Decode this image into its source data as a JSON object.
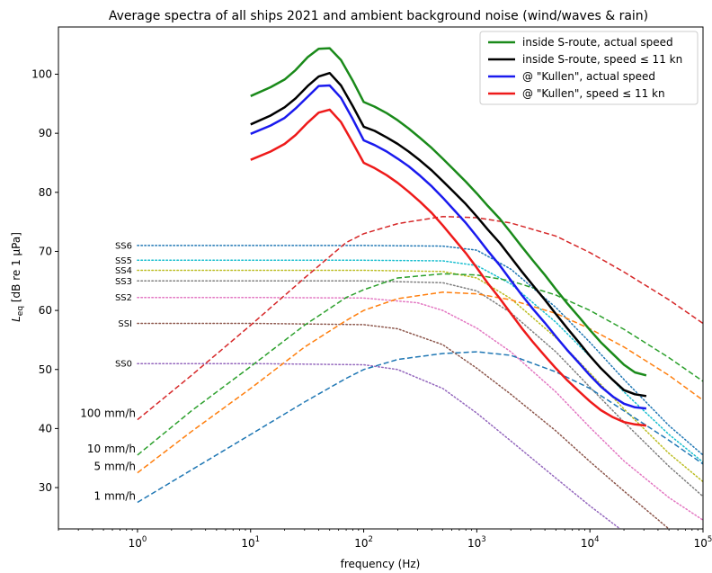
{
  "chart_data": {
    "type": "line",
    "title": "Average spectra of all ships 2021 and ambient background noise (wind/waves & rain)",
    "xlabel": "frequency (Hz)",
    "ylabel_main": "L",
    "ylabel_sub": "eq",
    "ylabel_rest": " [dB re 1 μPa]",
    "xscale": "log",
    "xlim": [
      0.2,
      100000
    ],
    "ylim": [
      23,
      108
    ],
    "x_ticks": [
      {
        "value": 1,
        "base": "10",
        "exp": "0"
      },
      {
        "value": 10,
        "base": "10",
        "exp": "1"
      },
      {
        "value": 100,
        "base": "10",
        "exp": "2"
      },
      {
        "value": 1000,
        "base": "10",
        "exp": "3"
      },
      {
        "value": 10000,
        "base": "10",
        "exp": "4"
      },
      {
        "value": 100000,
        "base": "10",
        "exp": "5"
      }
    ],
    "y_ticks": [
      30,
      40,
      50,
      60,
      70,
      80,
      90,
      100
    ],
    "grid": false,
    "legend_position": "top-right",
    "ship_series": [
      {
        "name": "inside S-route, actual speed",
        "color": "#1a8a1a",
        "x": [
          10,
          15,
          20,
          25,
          32,
          40,
          50,
          63,
          80,
          100,
          125,
          160,
          200,
          250,
          315,
          400,
          500,
          630,
          800,
          1000,
          1250,
          1600,
          2000,
          2500,
          3150,
          4000,
          5000,
          6300,
          8000,
          10000,
          12500,
          16000,
          20000,
          25000,
          31500
        ],
        "values": [
          96.3,
          97.8,
          99.1,
          100.7,
          102.9,
          104.3,
          104.4,
          102.4,
          98.9,
          95.3,
          94.5,
          93.4,
          92.2,
          90.8,
          89.2,
          87.5,
          85.7,
          83.8,
          81.8,
          79.8,
          77.7,
          75.5,
          73.2,
          70.8,
          68.4,
          66.0,
          63.6,
          61.2,
          58.9,
          56.7,
          54.6,
          52.6,
          50.8,
          49.5,
          49.0
        ]
      },
      {
        "name": "inside S-route, speed ≤ 11 kn",
        "color": "#000000",
        "x": [
          10,
          15,
          20,
          25,
          32,
          40,
          50,
          63,
          80,
          100,
          125,
          160,
          200,
          250,
          315,
          400,
          500,
          630,
          800,
          1000,
          1250,
          1600,
          2000,
          2500,
          3150,
          4000,
          5000,
          6300,
          8000,
          10000,
          12500,
          16000,
          20000,
          25000,
          31500
        ],
        "values": [
          91.5,
          93.0,
          94.4,
          95.9,
          98.0,
          99.6,
          100.2,
          98.1,
          94.6,
          91.1,
          90.4,
          89.3,
          88.2,
          86.9,
          85.4,
          83.7,
          81.9,
          80.0,
          78.0,
          75.9,
          73.7,
          71.4,
          69.0,
          66.6,
          64.2,
          61.8,
          59.4,
          57.0,
          54.6,
          52.3,
          50.2,
          48.2,
          46.5,
          45.8,
          45.5
        ]
      },
      {
        "name": "@ \"Kullen\", actual speed",
        "color": "#1a1aee",
        "x": [
          10,
          15,
          20,
          25,
          32,
          40,
          50,
          63,
          80,
          100,
          125,
          160,
          200,
          250,
          315,
          400,
          500,
          630,
          800,
          1000,
          1250,
          1600,
          2000,
          2500,
          3150,
          4000,
          5000,
          6300,
          8000,
          10000,
          12500,
          16000,
          20000,
          25000,
          31500
        ],
        "values": [
          89.9,
          91.3,
          92.6,
          94.2,
          96.2,
          98.0,
          98.1,
          96.0,
          92.4,
          88.8,
          88.0,
          86.9,
          85.7,
          84.4,
          82.8,
          81.0,
          79.1,
          77.0,
          74.8,
          72.5,
          70.1,
          67.6,
          65.1,
          62.6,
          60.2,
          57.9,
          55.6,
          53.3,
          51.1,
          49.0,
          47.1,
          45.4,
          44.2,
          43.6,
          43.4
        ]
      },
      {
        "name": "@ \"Kullen\", speed ≤ 11 kn",
        "color": "#ee1a1a",
        "x": [
          10,
          15,
          20,
          25,
          32,
          40,
          50,
          63,
          80,
          100,
          125,
          160,
          200,
          250,
          315,
          400,
          500,
          630,
          800,
          1000,
          1250,
          1600,
          2000,
          2500,
          3150,
          4000,
          5000,
          6300,
          8000,
          10000,
          12500,
          16000,
          20000,
          25000,
          31500
        ],
        "values": [
          85.5,
          86.9,
          88.2,
          89.7,
          91.8,
          93.5,
          94.0,
          91.9,
          88.4,
          85.0,
          84.1,
          82.9,
          81.6,
          80.1,
          78.4,
          76.5,
          74.4,
          72.1,
          69.7,
          67.2,
          64.6,
          62.0,
          59.5,
          57.0,
          54.6,
          52.3,
          50.2,
          48.2,
          46.3,
          44.6,
          43.1,
          41.9,
          41.1,
          40.7,
          40.5
        ]
      }
    ],
    "sea_state_series": [
      {
        "name": "SS6",
        "color": "#1f77b4",
        "x": [
          1,
          10,
          100,
          500,
          1000,
          2000,
          5000,
          10000,
          20000,
          50000,
          100000
        ],
        "values": [
          71.0,
          71.0,
          71.0,
          70.9,
          70.2,
          67.0,
          60.5,
          54.6,
          48.3,
          40.5,
          35.5
        ]
      },
      {
        "name": "SS5",
        "color": "#17becf",
        "x": [
          1,
          10,
          100,
          500,
          1000,
          2000,
          5000,
          10000,
          20000,
          50000,
          100000
        ],
        "values": [
          68.5,
          68.5,
          68.5,
          68.4,
          67.6,
          64.5,
          58.0,
          52.2,
          46.2,
          39.0,
          34.3
        ]
      },
      {
        "name": "SS4",
        "color": "#bcbd22",
        "x": [
          1,
          10,
          100,
          500,
          1000,
          2000,
          5000,
          10000,
          20000,
          50000,
          100000
        ],
        "values": [
          66.8,
          66.8,
          66.8,
          66.6,
          65.5,
          62.0,
          55.4,
          49.4,
          43.3,
          35.8,
          31.0
        ]
      },
      {
        "name": "SS3",
        "color": "#7f7f7f",
        "x": [
          1,
          10,
          100,
          500,
          1000,
          2000,
          5000,
          10000,
          20000,
          50000,
          100000
        ],
        "values": [
          65.0,
          65.0,
          65.0,
          64.7,
          63.3,
          59.6,
          53.0,
          47.0,
          41.1,
          33.6,
          28.5
        ]
      },
      {
        "name": "SS2",
        "color": "#e377c2",
        "x": [
          1,
          10,
          100,
          300,
          500,
          1000,
          2000,
          5000,
          10000,
          20000,
          50000,
          100000
        ],
        "values": [
          62.2,
          62.2,
          62.1,
          61.3,
          60.0,
          57.0,
          53.0,
          46.2,
          40.2,
          34.5,
          28.3,
          24.5
        ]
      },
      {
        "name": "SSI",
        "color": "#8c564b",
        "x": [
          1,
          10,
          100,
          200,
          500,
          1000,
          2000,
          5000,
          10000,
          20000,
          50000
        ],
        "values": [
          57.8,
          57.8,
          57.6,
          56.9,
          54.2,
          50.2,
          45.8,
          39.6,
          34.4,
          29.4,
          23.0
        ]
      },
      {
        "name": "SS0",
        "color": "#9467bd",
        "x": [
          1,
          10,
          100,
          200,
          500,
          1000,
          2000,
          5000,
          10000,
          20000
        ],
        "values": [
          51.0,
          51.0,
          50.8,
          50.0,
          46.8,
          42.6,
          37.9,
          31.6,
          26.9,
          22.5
        ]
      }
    ],
    "rain_series": [
      {
        "name": "100 mm/h",
        "color": "#d62728",
        "x": [
          1,
          3,
          10,
          30,
          70,
          100,
          200,
          500,
          1000,
          2000,
          5000,
          10000,
          20000,
          50000,
          100000
        ],
        "values": [
          41.5,
          49.0,
          57.5,
          65.5,
          71.5,
          73.0,
          74.7,
          75.9,
          75.7,
          74.8,
          72.6,
          69.8,
          66.5,
          61.8,
          57.8
        ]
      },
      {
        "name": "10 mm/h",
        "color": "#2ca02c",
        "x": [
          1,
          3,
          10,
          30,
          70,
          100,
          200,
          500,
          1000,
          2000,
          5000,
          10000,
          20000,
          50000,
          100000
        ],
        "values": [
          35.5,
          43.0,
          50.5,
          57.5,
          62.2,
          63.5,
          65.5,
          66.2,
          66.0,
          65.0,
          62.6,
          60.0,
          56.8,
          52.0,
          48.0
        ]
      },
      {
        "name": "5 mm/h",
        "color": "#ff7f0e",
        "x": [
          1,
          3,
          10,
          30,
          70,
          100,
          200,
          500,
          1000,
          2000,
          5000,
          10000,
          20000,
          50000,
          100000
        ],
        "values": [
          32.5,
          39.5,
          46.8,
          53.8,
          58.3,
          60.0,
          62.0,
          63.1,
          62.8,
          61.8,
          59.5,
          56.9,
          53.8,
          49.0,
          44.8
        ]
      },
      {
        "name": "1 mm/h",
        "color": "#1f77b4",
        "x": [
          1,
          3,
          10,
          30,
          70,
          100,
          200,
          500,
          1000,
          2000,
          5000,
          10000,
          20000,
          50000,
          100000
        ],
        "values": [
          27.5,
          33.0,
          39.0,
          44.5,
          48.5,
          50.0,
          51.7,
          52.7,
          53.0,
          52.4,
          49.6,
          46.8,
          43.0,
          38.0,
          34.0
        ]
      }
    ]
  }
}
